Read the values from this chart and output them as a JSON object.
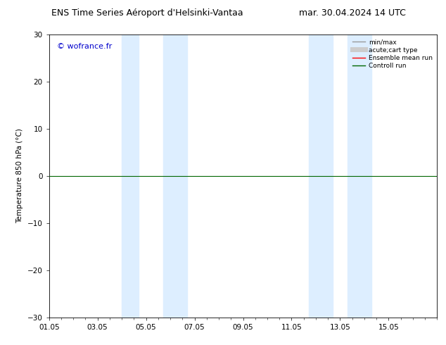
{
  "title_left": "ENS Time Series Aéroport d'Helsinki-Vantaa",
  "title_right": "mar. 30.04.2024 14 UTC",
  "ylabel": "Temperature 850 hPa (°C)",
  "ylim": [
    -30,
    30
  ],
  "yticks": [
    -30,
    -20,
    -10,
    0,
    10,
    20,
    30
  ],
  "xlim_start": 0.0,
  "xlim_end": 16.0,
  "xtick_positions": [
    0,
    2,
    4,
    6,
    8,
    10,
    12,
    14
  ],
  "xtick_labels": [
    "01.05",
    "03.05",
    "05.05",
    "07.05",
    "09.05",
    "11.05",
    "13.05",
    "15.05"
  ],
  "shaded_bands": [
    [
      3.0,
      3.7
    ],
    [
      4.7,
      5.7
    ],
    [
      10.7,
      11.7
    ],
    [
      12.3,
      13.3
    ]
  ],
  "shade_color": "#ddeeff",
  "bg_color": "#ffffff",
  "watermark": "© wofrance.fr",
  "watermark_color": "#0000cc",
  "legend_items": [
    {
      "label": "min/max",
      "color": "#999999",
      "lw": 1.0,
      "ls": "-"
    },
    {
      "label": "acute;cart type",
      "color": "#cccccc",
      "lw": 5,
      "ls": "-"
    },
    {
      "label": "Ensemble mean run",
      "color": "#ff0000",
      "lw": 1.0,
      "ls": "-"
    },
    {
      "label": "Controll run",
      "color": "#006600",
      "lw": 1.0,
      "ls": "-"
    }
  ],
  "line_color_control": "#006600",
  "line_color_ensemble": "#cc0000",
  "title_fontsize": 9,
  "axis_fontsize": 7.5,
  "watermark_fontsize": 8
}
